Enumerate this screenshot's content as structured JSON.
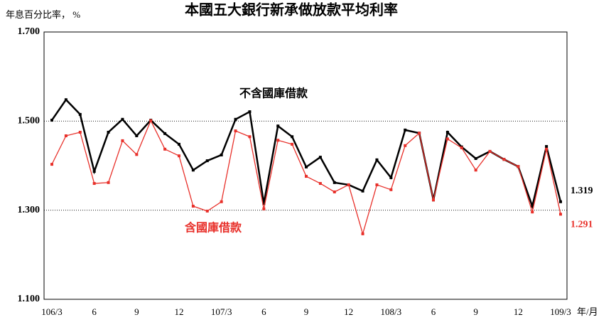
{
  "chart_data": {
    "type": "line",
    "title": "本國五大銀行新承做放款平均利率",
    "y_label": "年息百分比率， %",
    "x_label": "年/月",
    "categories": [
      "106/3",
      null,
      null,
      "6",
      null,
      null,
      "9",
      null,
      null,
      "12",
      null,
      null,
      "107/3",
      null,
      null,
      "6",
      null,
      null,
      "9",
      null,
      null,
      "12",
      null,
      null,
      "108/3",
      null,
      null,
      "6",
      null,
      null,
      "9",
      null,
      null,
      "12",
      null,
      null,
      "109/3"
    ],
    "ylim": [
      1.1,
      1.7
    ],
    "yticks": [
      {
        "value": 1.1,
        "label": "1.100"
      },
      {
        "value": 1.3,
        "label": "1.300"
      },
      {
        "value": 1.5,
        "label": "1.500"
      },
      {
        "value": 1.7,
        "label": "1.700"
      }
    ],
    "grid": true,
    "series": [
      {
        "name": "不含國庫借款",
        "color": "#000000",
        "values": [
          1.502,
          1.548,
          1.515,
          1.387,
          1.475,
          1.504,
          1.467,
          1.502,
          1.472,
          1.448,
          1.39,
          1.411,
          1.424,
          1.504,
          1.521,
          1.315,
          1.489,
          1.465,
          1.397,
          1.419,
          1.362,
          1.357,
          1.343,
          1.413,
          1.373,
          1.48,
          1.473,
          1.323,
          1.475,
          1.442,
          1.416,
          1.432,
          1.414,
          1.398,
          1.309,
          1.443,
          1.319
        ],
        "value_labels": [
          null,
          null,
          null,
          null,
          null,
          null,
          null,
          null,
          null,
          null,
          null,
          null,
          null,
          null,
          null,
          null,
          null,
          null,
          null,
          null,
          null,
          null,
          null,
          null,
          null,
          null,
          null,
          null,
          null,
          null,
          null,
          null,
          null,
          null,
          null,
          null,
          "1.319"
        ]
      },
      {
        "name": "含國庫借款",
        "color": "#e8302a",
        "values": [
          1.403,
          1.467,
          1.475,
          1.36,
          1.362,
          1.456,
          1.425,
          1.501,
          1.437,
          1.422,
          1.309,
          1.298,
          1.319,
          1.478,
          1.465,
          1.303,
          1.457,
          1.448,
          1.376,
          1.36,
          1.341,
          1.357,
          1.247,
          1.357,
          1.346,
          1.445,
          1.473,
          1.323,
          1.46,
          1.44,
          1.39,
          1.432,
          1.414,
          1.398,
          1.296,
          1.437,
          1.291
        ],
        "value_labels": [
          null,
          null,
          null,
          null,
          null,
          null,
          null,
          null,
          null,
          null,
          null,
          null,
          null,
          null,
          null,
          null,
          null,
          null,
          null,
          null,
          null,
          null,
          null,
          null,
          null,
          null,
          null,
          null,
          null,
          null,
          null,
          null,
          null,
          null,
          null,
          null,
          "1.291"
        ]
      }
    ]
  }
}
